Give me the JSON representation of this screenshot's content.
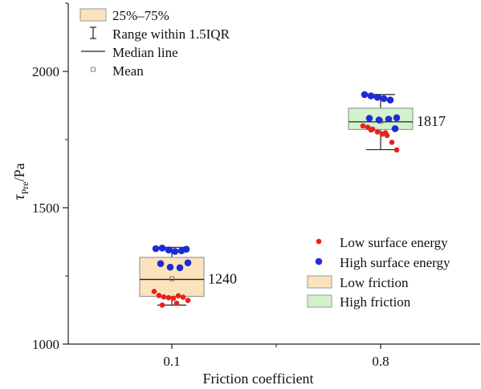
{
  "chart_data": {
    "type": "box",
    "xlabel": "Friction coefficient",
    "ylabel_main": "τ",
    "ylabel_sub": "Pre",
    "ylabel_unit": "/Pa",
    "ylim": [
      1000,
      2250
    ],
    "yticks": [
      1000,
      1500,
      2000
    ],
    "yticks_labels": [
      "1000",
      "1500",
      "2000"
    ],
    "categories": [
      "0.1",
      "0.8"
    ],
    "boxes": [
      {
        "category": "0.1",
        "fill": "#fbe3bb",
        "q1": 1175,
        "median": 1237,
        "q3": 1318,
        "mean": 1240,
        "whisker_low": 1143,
        "whisker_high": 1355,
        "label": "1240",
        "low_energy_points": [
          1193,
          1178,
          1173,
          1170,
          1168,
          1177,
          1172,
          1160,
          1143,
          1150
        ],
        "high_energy_points": [
          1350,
          1352,
          1345,
          1340,
          1342,
          1298,
          1295,
          1282,
          1280,
          1348
        ]
      },
      {
        "category": "0.8",
        "fill": "#d3f2cb",
        "q1": 1787,
        "median": 1815,
        "q3": 1865,
        "mean": 1817,
        "whisker_low": 1713,
        "whisker_high": 1915,
        "label": "1817",
        "low_energy_points": [
          1800,
          1795,
          1788,
          1778,
          1770,
          1765,
          1740,
          1712,
          1785,
          1775
        ],
        "high_energy_points": [
          1915,
          1910,
          1905,
          1900,
          1895,
          1830,
          1828,
          1822,
          1825,
          1790
        ]
      }
    ],
    "legend_top": {
      "placement": "top-left",
      "items": [
        {
          "kind": "box",
          "label": "25%–75%"
        },
        {
          "kind": "whisker",
          "label": "Range within 1.5IQR"
        },
        {
          "kind": "line",
          "label": "Median line"
        },
        {
          "kind": "mean",
          "label": "Mean"
        }
      ]
    },
    "legend_bottom": {
      "placement": "bottom-right",
      "items": [
        {
          "kind": "dot",
          "color": "#e8211c",
          "label": "Low surface energy"
        },
        {
          "kind": "dot",
          "color": "#1f2bd6",
          "label": "High surface energy"
        },
        {
          "kind": "box",
          "color": "#fbe3bb",
          "label": "Low friction"
        },
        {
          "kind": "box",
          "color": "#d3f2cb",
          "label": "High friction"
        }
      ]
    },
    "colors": {
      "low_energy": "#e8211c",
      "high_energy": "#1f2bd6",
      "low_friction_fill": "#fbe3bb",
      "high_friction_fill": "#d3f2cb",
      "box_stroke": "#9a9a9a"
    }
  }
}
